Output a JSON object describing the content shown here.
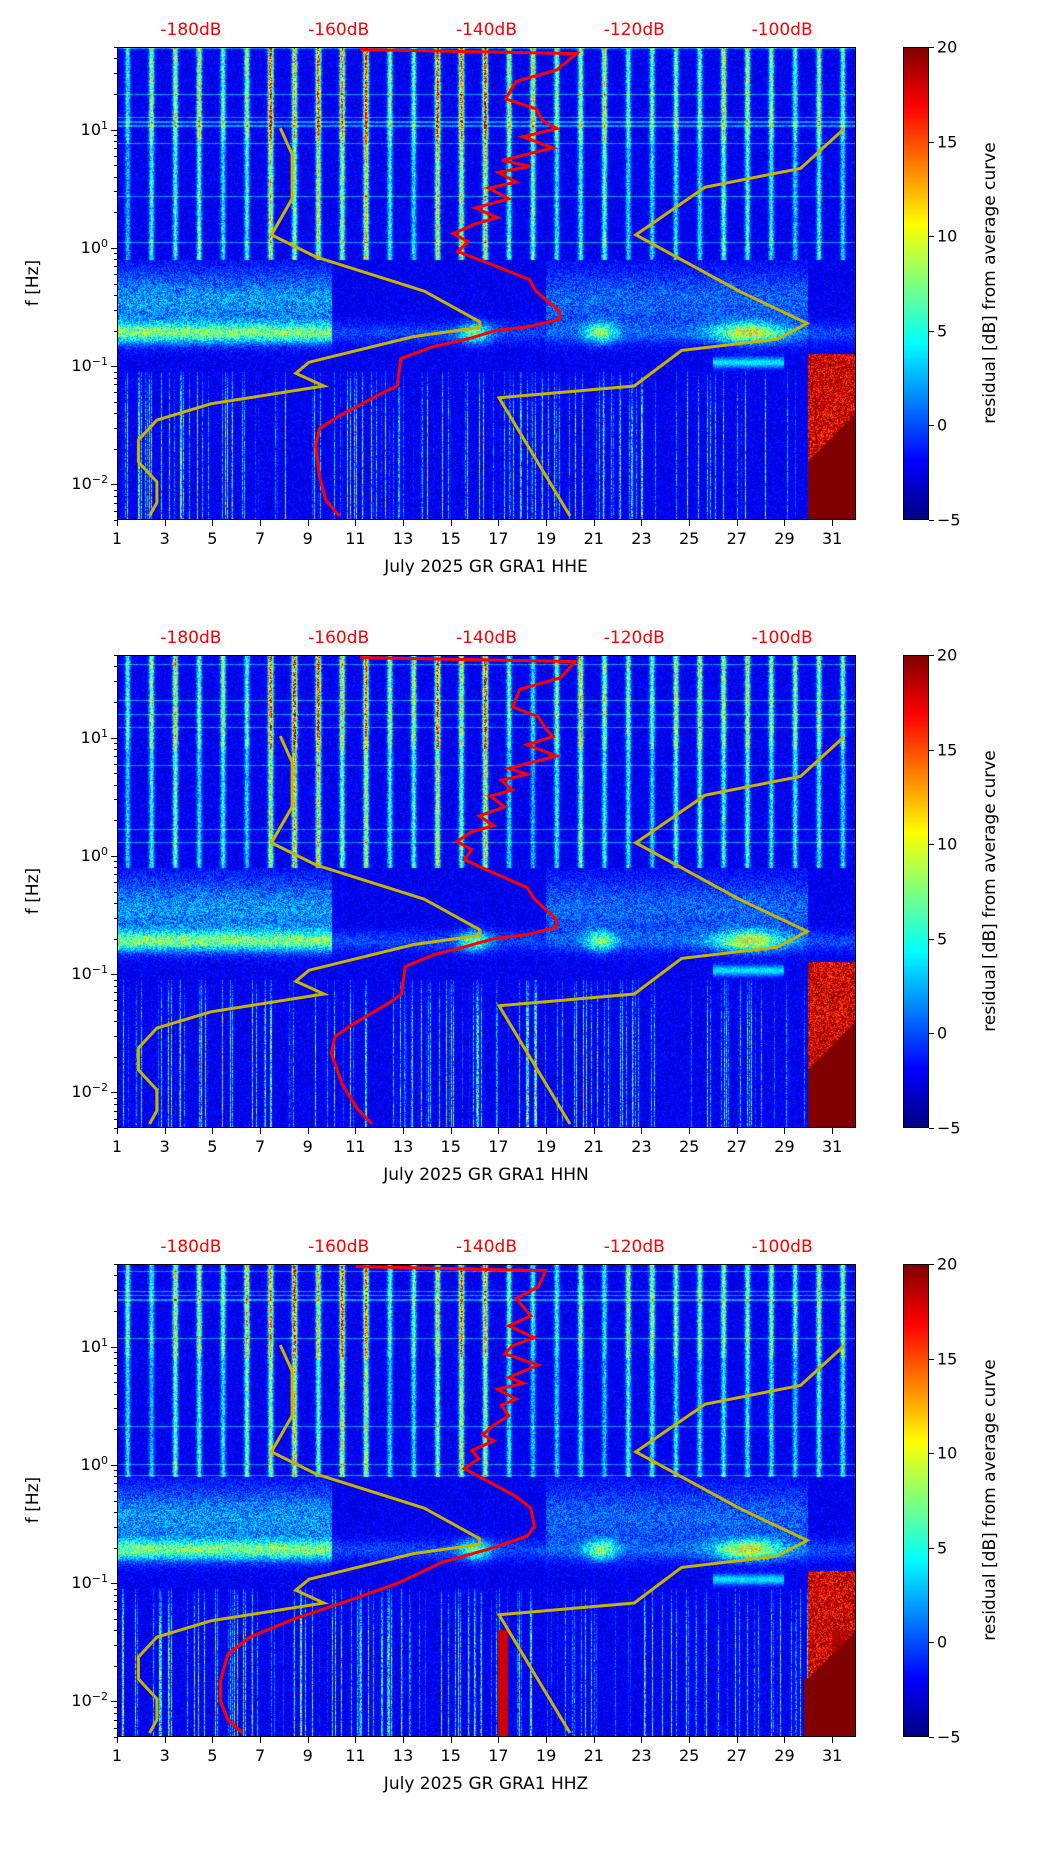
{
  "chart_data": {
    "type": "heatmap",
    "title": "",
    "x_range_days": [
      1,
      32
    ],
    "x_ticks": [
      "1",
      "3",
      "5",
      "7",
      "9",
      "11",
      "13",
      "15",
      "17",
      "19",
      "21",
      "23",
      "25",
      "27",
      "29",
      "31"
    ],
    "y_scale": "log",
    "y_range_hz": [
      0.005,
      50
    ],
    "y_ticks": [
      {
        "base": "10",
        "exp": "−2",
        "value": 0.01
      },
      {
        "base": "10",
        "exp": "−1",
        "value": 0.1
      },
      {
        "base": "10",
        "exp": "0",
        "value": 1
      },
      {
        "base": "10",
        "exp": "1",
        "value": 10
      }
    ],
    "ylabel": "f [Hz]",
    "top_axis": {
      "range_db": [
        -190,
        -90
      ],
      "ticks": [
        {
          "label": "-180dB",
          "value": -180
        },
        {
          "label": "-160dB",
          "value": -160
        },
        {
          "label": "-140dB",
          "value": -140
        },
        {
          "label": "-120dB",
          "value": -120
        },
        {
          "label": "-100dB",
          "value": -100
        }
      ],
      "color": "#ff0000"
    },
    "colorbar": {
      "label": "residual [dB] from average curve",
      "range": [
        -5,
        20
      ],
      "ticks": [
        "20",
        "15",
        "10",
        "5",
        "0",
        "−5"
      ],
      "tick_values": [
        20,
        15,
        10,
        5,
        0,
        -5
      ],
      "colormap": "jet"
    },
    "reference_curves": [
      {
        "name": "low noise model",
        "color": "#c8b400",
        "points": [
          [
            -167.9,
            10.3
          ],
          [
            -166.3,
            6.2
          ],
          [
            -166.3,
            2.6
          ],
          [
            -169.1,
            1.29
          ],
          [
            -163.1,
            0.84
          ],
          [
            -148.4,
            0.43
          ],
          [
            -140.9,
            0.237
          ],
          [
            -140.9,
            0.213
          ],
          [
            -149.8,
            0.178
          ],
          [
            -164.0,
            0.108
          ],
          [
            -165.8,
            0.087
          ],
          [
            -162.0,
            0.068
          ],
          [
            -177.3,
            0.048
          ],
          [
            -184.6,
            0.035
          ],
          [
            -187.1,
            0.0237
          ],
          [
            -187.1,
            0.0155
          ],
          [
            -184.6,
            0.0105
          ],
          [
            -184.6,
            0.007
          ],
          [
            -185.6,
            0.0054
          ]
        ]
      },
      {
        "name": "high noise model",
        "color": "#c8b400",
        "points": [
          [
            -91.6,
            10.2
          ],
          [
            -97.5,
            4.7
          ],
          [
            -110.4,
            3.26
          ],
          [
            -119.8,
            1.29
          ],
          [
            -105.8,
            0.43
          ],
          [
            -96.6,
            0.23
          ],
          [
            -100.7,
            0.169
          ],
          [
            -113.6,
            0.136
          ],
          [
            -120.0,
            0.068
          ],
          [
            -138.3,
            0.054
          ],
          [
            -128.7,
            0.0054
          ]
        ]
      }
    ],
    "panels": [
      {
        "xlabel": "July 2025 GR GRA1  HHE",
        "seed": 11,
        "psd_curve": {
          "name": "median PSD",
          "color": "#ff0000",
          "points": [
            [
              -157.1,
              47.5
            ],
            [
              -127.8,
              44
            ],
            [
              -130.5,
              32
            ],
            [
              -136.0,
              25.6
            ],
            [
              -137.4,
              18.2
            ],
            [
              -133.3,
              15
            ],
            [
              -132.4,
              11.9
            ],
            [
              -130.5,
              10.2
            ],
            [
              -135.1,
              8.7
            ],
            [
              -131.0,
              7.0
            ],
            [
              -137.9,
              5.5
            ],
            [
              -134.0,
              4.9
            ],
            [
              -138.4,
              4.36
            ],
            [
              -136.0,
              3.6
            ],
            [
              -139.7,
              3.2
            ],
            [
              -137.0,
              2.6
            ],
            [
              -141.5,
              2.18
            ],
            [
              -138.5,
              1.8
            ],
            [
              -141.5,
              1.6
            ],
            [
              -144.5,
              1.32
            ],
            [
              -142.5,
              1.13
            ],
            [
              -143.9,
              0.93
            ],
            [
              -139.7,
              0.74
            ],
            [
              -134.2,
              0.54
            ],
            [
              -133.3,
              0.43
            ],
            [
              -130.1,
              0.29
            ],
            [
              -130.1,
              0.25
            ],
            [
              -134.2,
              0.216
            ],
            [
              -138.8,
              0.2
            ],
            [
              -142.5,
              0.17
            ],
            [
              -147.1,
              0.147
            ],
            [
              -151.6,
              0.116
            ],
            [
              -152.1,
              0.068
            ],
            [
              -154.4,
              0.058
            ],
            [
              -159.9,
              0.038
            ],
            [
              -162.6,
              0.0296
            ],
            [
              -163.1,
              0.0214
            ],
            [
              -162.6,
              0.0116
            ],
            [
              -161.7,
              0.0073
            ],
            [
              -159.9,
              0.0054
            ]
          ]
        }
      },
      {
        "xlabel": "July 2025 GR GRA1  HHN",
        "seed": 23,
        "psd_curve": {
          "name": "median PSD",
          "color": "#ff0000",
          "points": [
            [
              -157.1,
              47.5
            ],
            [
              -128.0,
              44
            ],
            [
              -130.0,
              32
            ],
            [
              -135.5,
              25.6
            ],
            [
              -136.5,
              18.2
            ],
            [
              -133.0,
              15
            ],
            [
              -132.0,
              11.9
            ],
            [
              -131.0,
              10.2
            ],
            [
              -134.5,
              8.7
            ],
            [
              -130.5,
              7.0
            ],
            [
              -137.0,
              5.5
            ],
            [
              -134.5,
              4.9
            ],
            [
              -138.0,
              4.36
            ],
            [
              -136.5,
              3.6
            ],
            [
              -139.5,
              3.2
            ],
            [
              -137.5,
              2.6
            ],
            [
              -141.0,
              2.18
            ],
            [
              -139.0,
              1.8
            ],
            [
              -142.0,
              1.6
            ],
            [
              -144.0,
              1.32
            ],
            [
              -142.0,
              1.13
            ],
            [
              -143.0,
              0.93
            ],
            [
              -139.5,
              0.74
            ],
            [
              -134.5,
              0.54
            ],
            [
              -133.5,
              0.43
            ],
            [
              -130.5,
              0.29
            ],
            [
              -130.5,
              0.25
            ],
            [
              -134.5,
              0.216
            ],
            [
              -139.0,
              0.2
            ],
            [
              -143.0,
              0.17
            ],
            [
              -147.0,
              0.147
            ],
            [
              -151.0,
              0.116
            ],
            [
              -151.5,
              0.068
            ],
            [
              -153.0,
              0.058
            ],
            [
              -158.0,
              0.038
            ],
            [
              -160.5,
              0.0296
            ],
            [
              -161.0,
              0.0214
            ],
            [
              -159.5,
              0.0116
            ],
            [
              -157.5,
              0.0073
            ],
            [
              -155.5,
              0.0054
            ]
          ]
        }
      },
      {
        "xlabel": "July 2025 GR GRA1  HHZ",
        "seed": 37,
        "psd_curve": {
          "name": "median PSD",
          "color": "#ff0000",
          "points": [
            [
              -157.7,
              47.5
            ],
            [
              -132.0,
              44
            ],
            [
              -133.0,
              32
            ],
            [
              -136.0,
              25.6
            ],
            [
              -134.0,
              18.2
            ],
            [
              -137.0,
              15
            ],
            [
              -133.5,
              11.9
            ],
            [
              -136.5,
              10.2
            ],
            [
              -137.5,
              8.7
            ],
            [
              -133.0,
              7.0
            ],
            [
              -137.0,
              5.5
            ],
            [
              -135.0,
              4.9
            ],
            [
              -138.5,
              4.36
            ],
            [
              -136.0,
              3.6
            ],
            [
              -138.0,
              3.2
            ],
            [
              -137.0,
              2.6
            ],
            [
              -139.0,
              2.18
            ],
            [
              -140.5,
              1.8
            ],
            [
              -139.0,
              1.6
            ],
            [
              -142.0,
              1.32
            ],
            [
              -141.0,
              1.13
            ],
            [
              -143.0,
              0.93
            ],
            [
              -140.0,
              0.74
            ],
            [
              -136.0,
              0.54
            ],
            [
              -134.0,
              0.43
            ],
            [
              -133.5,
              0.3
            ],
            [
              -134.5,
              0.25
            ],
            [
              -139.0,
              0.2
            ],
            [
              -146.0,
              0.15
            ],
            [
              -152.0,
              0.1
            ],
            [
              -159.0,
              0.07
            ],
            [
              -166.0,
              0.05
            ],
            [
              -172.0,
              0.035
            ],
            [
              -175.0,
              0.025
            ],
            [
              -176.0,
              0.015
            ],
            [
              -176.0,
              0.01
            ],
            [
              -175.0,
              0.007
            ],
            [
              -173.0,
              0.0054
            ]
          ]
        }
      }
    ]
  }
}
